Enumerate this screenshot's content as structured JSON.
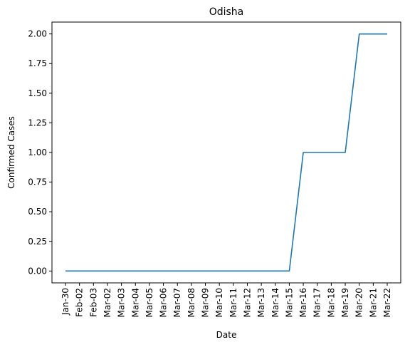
{
  "chart_data": {
    "type": "line",
    "title": "Odisha",
    "xlabel": "Date",
    "ylabel": "Confirmed Cases",
    "categories": [
      "Jan-30",
      "Feb-02",
      "Feb-03",
      "Mar-02",
      "Mar-03",
      "Mar-04",
      "Mar-05",
      "Mar-06",
      "Mar-07",
      "Mar-08",
      "Mar-09",
      "Mar-10",
      "Mar-11",
      "Mar-12",
      "Mar-13",
      "Mar-14",
      "Mar-15",
      "Mar-16",
      "Mar-17",
      "Mar-18",
      "Mar-19",
      "Mar-20",
      "Mar-21",
      "Mar-22"
    ],
    "values": [
      0,
      0,
      0,
      0,
      0,
      0,
      0,
      0,
      0,
      0,
      0,
      0,
      0,
      0,
      0,
      0,
      0,
      1,
      1,
      1,
      1,
      2,
      2,
      2
    ],
    "ylim": [
      -0.1,
      2.1
    ],
    "yticks": [
      {
        "value": 0,
        "label": "0.00"
      },
      {
        "value": 0.25,
        "label": "0.25"
      },
      {
        "value": 0.5,
        "label": "0.50"
      },
      {
        "value": 0.75,
        "label": "0.75"
      },
      {
        "value": 1,
        "label": "1.00"
      },
      {
        "value": 1.25,
        "label": "1.25"
      },
      {
        "value": 1.5,
        "label": "1.50"
      },
      {
        "value": 1.75,
        "label": "1.75"
      },
      {
        "value": 2,
        "label": "2.00"
      }
    ],
    "line_color": "#1f77b4",
    "grid": false,
    "legend": "none"
  }
}
